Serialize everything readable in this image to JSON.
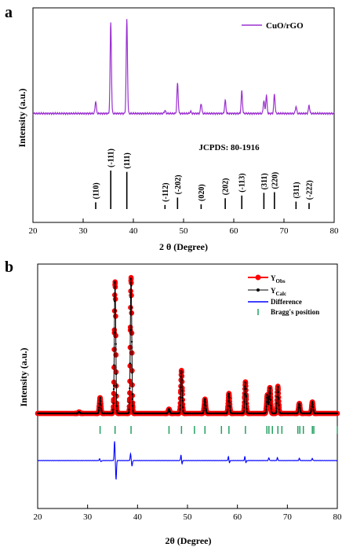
{
  "chart_data": [
    {
      "panel": "a",
      "type": "line",
      "xlabel": "2 θ (Degree)",
      "ylabel": "Intensity (a.u.)",
      "xlim": [
        20,
        80
      ],
      "xticks": [
        "20",
        "30",
        "40",
        "50",
        "60",
        "70",
        "80"
      ],
      "grid": false,
      "legend_position": "top-right",
      "series": [
        {
          "name": "CuO/rGO",
          "color": "#9b30d0",
          "baseline": 0.05,
          "peaks": [
            [
              32.5,
              0.12
            ],
            [
              35.5,
              0.9
            ],
            [
              38.7,
              0.93
            ],
            [
              46.3,
              0.03
            ],
            [
              48.8,
              0.3
            ],
            [
              51.4,
              0.02
            ],
            [
              53.5,
              0.1
            ],
            [
              58.3,
              0.13
            ],
            [
              61.6,
              0.22
            ],
            [
              66.0,
              0.13
            ],
            [
              66.5,
              0.18
            ],
            [
              68.1,
              0.19
            ],
            [
              72.4,
              0.07
            ],
            [
              75.0,
              0.08
            ]
          ]
        }
      ],
      "reference": {
        "label": "JCPDS: 80-1916",
        "color": "#000000",
        "lines": [
          {
            "x": 32.5,
            "h": 0.1,
            "hkl": "(110)"
          },
          {
            "x": 35.5,
            "h": 0.57,
            "hkl": "(-111)"
          },
          {
            "x": 38.7,
            "h": 0.55,
            "hkl": "(111)"
          },
          {
            "x": 46.3,
            "h": 0.06,
            "hkl": "(-112)"
          },
          {
            "x": 48.8,
            "h": 0.17,
            "hkl": "(-202)"
          },
          {
            "x": 53.5,
            "h": 0.07,
            "hkl": "(020)"
          },
          {
            "x": 58.3,
            "h": 0.16,
            "hkl": "(202)"
          },
          {
            "x": 61.6,
            "h": 0.2,
            "hkl": "(-113)"
          },
          {
            "x": 66.0,
            "h": 0.24,
            "hkl": "(311)"
          },
          {
            "x": 68.1,
            "h": 0.25,
            "hkl": "(220)"
          },
          {
            "x": 72.4,
            "h": 0.11,
            "hkl": "(311)"
          },
          {
            "x": 75.0,
            "h": 0.09,
            "hkl": "(-222)"
          }
        ]
      }
    },
    {
      "panel": "b",
      "type": "scatter",
      "xlabel": "2θ (Degree)",
      "ylabel": "Intensity (a.u.)",
      "xlim": [
        20,
        80
      ],
      "xticks": [
        "20",
        "30",
        "40",
        "50",
        "60",
        "70",
        "80"
      ],
      "grid": false,
      "legend_position": "top-right",
      "peaks": [
        [
          28.3,
          0.01
        ],
        [
          32.5,
          0.11
        ],
        [
          35.5,
          0.92
        ],
        [
          38.7,
          0.95
        ],
        [
          46.3,
          0.03
        ],
        [
          48.8,
          0.3
        ],
        [
          53.5,
          0.1
        ],
        [
          58.3,
          0.14
        ],
        [
          61.6,
          0.22
        ],
        [
          66.0,
          0.13
        ],
        [
          66.5,
          0.18
        ],
        [
          68.1,
          0.19
        ],
        [
          72.4,
          0.07
        ],
        [
          75.0,
          0.08
        ]
      ],
      "series": [
        {
          "name": "Y",
          "subscript": "Obs",
          "color": "#ff0000",
          "marker": "circle"
        },
        {
          "name": "Y",
          "subscript": "Calc",
          "color": "#000000",
          "marker": "dot-line"
        },
        {
          "name": "Difference",
          "color": "#0000ff",
          "marker": "line"
        },
        {
          "name": "Bragg's position",
          "color": "#22a060",
          "marker": "tick"
        }
      ],
      "bragg_positions": [
        32.5,
        35.5,
        38.7,
        46.3,
        48.8,
        51.4,
        53.5,
        56.8,
        58.3,
        61.6,
        65.9,
        66.3,
        67.0,
        68.1,
        68.9,
        72.1,
        72.5,
        73.2,
        75.0,
        75.3,
        80.0
      ],
      "difference_spikes": [
        [
          32.4,
          0.03
        ],
        [
          32.7,
          -0.02
        ],
        [
          35.4,
          0.35
        ],
        [
          35.7,
          -0.35
        ],
        [
          38.6,
          0.12
        ],
        [
          38.9,
          -0.1
        ],
        [
          48.7,
          0.1
        ],
        [
          48.9,
          -0.06
        ],
        [
          58.2,
          0.07
        ],
        [
          58.4,
          -0.04
        ],
        [
          61.5,
          0.07
        ],
        [
          61.7,
          -0.04
        ],
        [
          66.3,
          0.05
        ],
        [
          68.0,
          0.05
        ],
        [
          72.4,
          0.04
        ],
        [
          75.0,
          0.04
        ]
      ]
    }
  ],
  "labels": {
    "panel_a": "a",
    "panel_b": "b"
  }
}
